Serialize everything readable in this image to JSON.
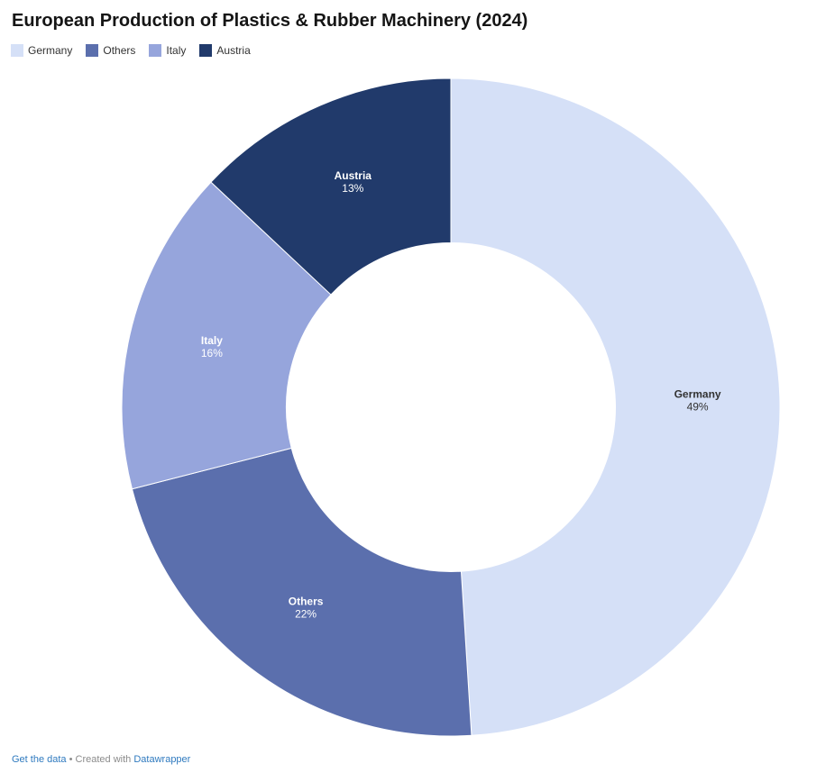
{
  "title": "European Production of Plastics & Rubber Machinery (2024)",
  "footer": {
    "get_data_label": "Get the data",
    "separator": "•",
    "created_with": "Created with",
    "brand": "Datawrapper",
    "link_color": "#2f7abf",
    "text_color": "#8b8b8b"
  },
  "chart_data": {
    "type": "pie",
    "subtype": "donut",
    "title": "European Production of Plastics & Rubber Machinery (2024)",
    "categories": [
      "Germany",
      "Others",
      "Italy",
      "Austria"
    ],
    "values": [
      49,
      22,
      16,
      13
    ],
    "unit": "%",
    "colors": [
      "#d5e0f7",
      "#5b6fad",
      "#96a5dc",
      "#213a6b"
    ],
    "label_colors": [
      "#333333",
      "#ffffff",
      "#ffffff",
      "#ffffff"
    ],
    "slice_border_color": "#ffffff",
    "start_angle_deg": 0,
    "direction": "clockwise",
    "inner_radius_ratio": 0.5,
    "legend_position": "top-left",
    "legend_entries": [
      "Germany",
      "Others",
      "Italy",
      "Austria"
    ]
  }
}
